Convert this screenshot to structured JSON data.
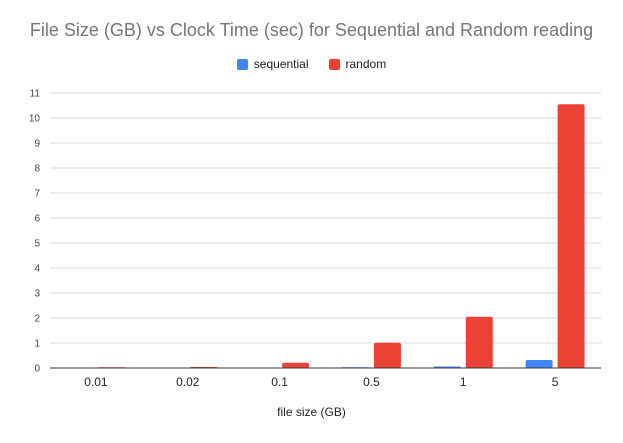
{
  "chart_data": {
    "type": "bar",
    "title": "File Size (GB) vs Clock Time (sec) for Sequential and Random reading",
    "xlabel": "file size (GB)",
    "ylabel": "",
    "categories": [
      "0.01",
      "0.02",
      "0.1",
      "0.5",
      "1",
      "5"
    ],
    "series": [
      {
        "name": "sequential",
        "color": "#4285f4",
        "values": [
          0.002,
          0.003,
          0.01,
          0.03,
          0.06,
          0.32
        ]
      },
      {
        "name": "random",
        "color": "#ea4335",
        "values": [
          0.03,
          0.04,
          0.21,
          1.01,
          2.05,
          10.55
        ]
      }
    ],
    "ylim": [
      0,
      11
    ],
    "yticks": [
      0,
      1,
      2,
      3,
      4,
      5,
      6,
      7,
      8,
      9,
      10,
      11
    ],
    "grid": true,
    "legend_position": "top"
  }
}
